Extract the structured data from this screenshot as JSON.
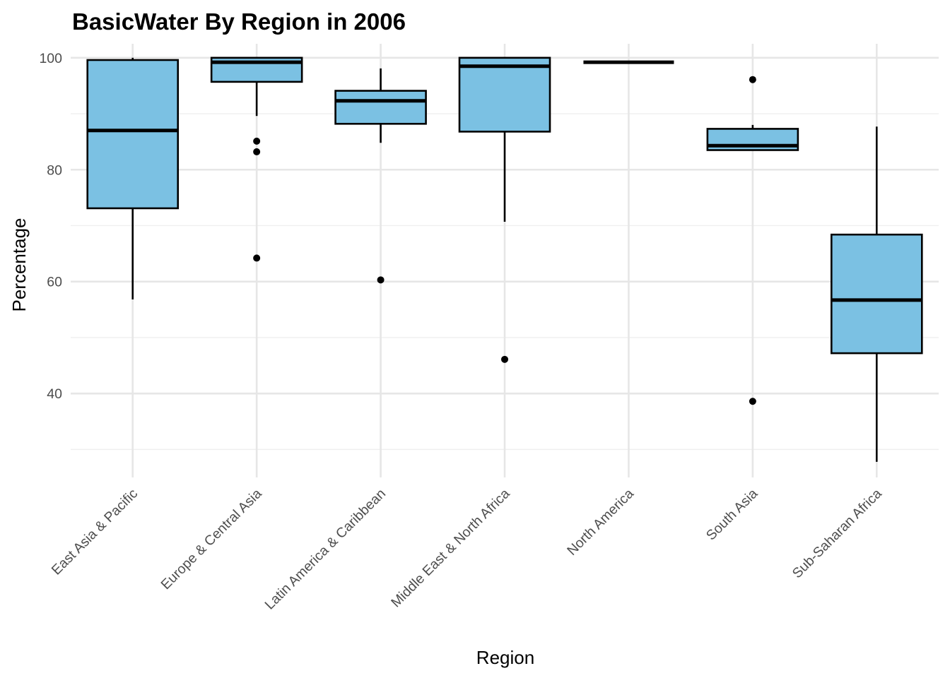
{
  "chart_data": {
    "type": "boxplot",
    "title": "BasicWater By Region in 2006",
    "xlabel": "Region",
    "ylabel": "Percentage",
    "ylim": [
      25,
      102.5
    ],
    "yticks": [
      40,
      60,
      80,
      100
    ],
    "grid": true,
    "legend": "none",
    "box_fill": "#7bc1e3",
    "box_stroke": "#000000",
    "categories": [
      "East Asia & Pacific",
      "Europe & Central Asia",
      "Latin America & Caribbean",
      "Middle East & North Africa",
      "North America",
      "South Asia",
      "Sub-Saharan Africa"
    ],
    "boxes": [
      {
        "category": "East Asia & Pacific",
        "whisker_low": 56.8,
        "q1": 73.1,
        "median": 87.0,
        "q3": 99.6,
        "whisker_high": 100.0,
        "outliers": []
      },
      {
        "category": "Europe & Central Asia",
        "whisker_low": 89.6,
        "q1": 95.7,
        "median": 99.2,
        "q3": 100.0,
        "whisker_high": 100.0,
        "outliers": [
          85.1,
          83.2,
          64.2
        ]
      },
      {
        "category": "Latin America & Caribbean",
        "whisker_low": 84.8,
        "q1": 88.2,
        "median": 92.3,
        "q3": 94.1,
        "whisker_high": 98.1,
        "outliers": [
          60.3
        ]
      },
      {
        "category": "Middle East & North Africa",
        "whisker_low": 70.7,
        "q1": 86.8,
        "median": 98.5,
        "q3": 100.0,
        "whisker_high": 100.0,
        "outliers": [
          46.1
        ]
      },
      {
        "category": "North America",
        "whisker_low": 99.2,
        "q1": 99.2,
        "median": 99.2,
        "q3": 99.2,
        "whisker_high": 99.2,
        "outliers": []
      },
      {
        "category": "South Asia",
        "whisker_low": 83.4,
        "q1": 83.5,
        "median": 84.3,
        "q3": 87.3,
        "whisker_high": 88.0,
        "outliers": [
          96.1,
          38.6
        ]
      },
      {
        "category": "Sub-Saharan Africa",
        "whisker_low": 27.8,
        "q1": 47.2,
        "median": 56.7,
        "q3": 68.4,
        "whisker_high": 87.7,
        "outliers": []
      }
    ]
  }
}
